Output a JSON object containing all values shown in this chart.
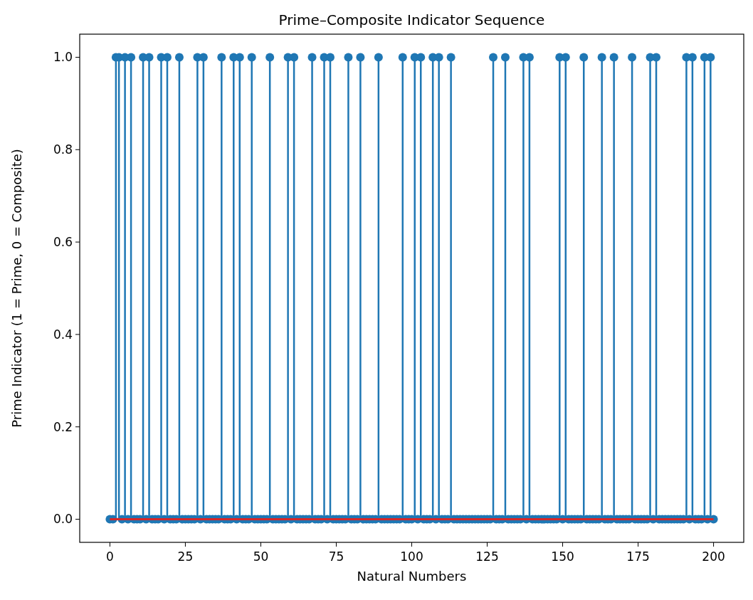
{
  "chart_data": {
    "type": "lollipop",
    "title": "Prime–Composite Indicator Sequence",
    "xlabel": "Natural Numbers",
    "ylabel": "Prime Indicator (1 = Prime, 0 = Composite)",
    "x": [
      0,
      1,
      2,
      3,
      4,
      5,
      6,
      7,
      8,
      9,
      10,
      11,
      12,
      13,
      14,
      15,
      16,
      17,
      18,
      19,
      20,
      21,
      22,
      23,
      24,
      25,
      26,
      27,
      28,
      29,
      30,
      31,
      32,
      33,
      34,
      35,
      36,
      37,
      38,
      39,
      40,
      41,
      42,
      43,
      44,
      45,
      46,
      47,
      48,
      49,
      50,
      51,
      52,
      53,
      54,
      55,
      56,
      57,
      58,
      59,
      60,
      61,
      62,
      63,
      64,
      65,
      66,
      67,
      68,
      69,
      70,
      71,
      72,
      73,
      74,
      75,
      76,
      77,
      78,
      79,
      80,
      81,
      82,
      83,
      84,
      85,
      86,
      87,
      88,
      89,
      90,
      91,
      92,
      93,
      94,
      95,
      96,
      97,
      98,
      99,
      100,
      101,
      102,
      103,
      104,
      105,
      106,
      107,
      108,
      109,
      110,
      111,
      112,
      113,
      114,
      115,
      116,
      117,
      118,
      119,
      120,
      121,
      122,
      123,
      124,
      125,
      126,
      127,
      128,
      129,
      130,
      131,
      132,
      133,
      134,
      135,
      136,
      137,
      138,
      139,
      140,
      141,
      142,
      143,
      144,
      145,
      146,
      147,
      148,
      149,
      150,
      151,
      152,
      153,
      154,
      155,
      156,
      157,
      158,
      159,
      160,
      161,
      162,
      163,
      164,
      165,
      166,
      167,
      168,
      169,
      170,
      171,
      172,
      173,
      174,
      175,
      176,
      177,
      178,
      179,
      180,
      181,
      182,
      183,
      184,
      185,
      186,
      187,
      188,
      189,
      190,
      191,
      192,
      193,
      194,
      195,
      196,
      197,
      198,
      199,
      200
    ],
    "series": [
      {
        "color": "#1f77b4",
        "values": [
          0,
          0,
          1,
          1,
          0,
          1,
          0,
          1,
          0,
          0,
          0,
          1,
          0,
          1,
          0,
          0,
          0,
          1,
          0,
          1,
          0,
          0,
          0,
          1,
          0,
          0,
          0,
          0,
          0,
          1,
          0,
          1,
          0,
          0,
          0,
          0,
          0,
          1,
          0,
          0,
          0,
          1,
          0,
          1,
          0,
          0,
          0,
          1,
          0,
          0,
          0,
          0,
          0,
          1,
          0,
          0,
          0,
          0,
          0,
          1,
          0,
          1,
          0,
          0,
          0,
          0,
          0,
          1,
          0,
          0,
          0,
          1,
          0,
          1,
          0,
          0,
          0,
          0,
          0,
          1,
          0,
          0,
          0,
          1,
          0,
          0,
          0,
          0,
          0,
          1,
          0,
          0,
          0,
          0,
          0,
          0,
          0,
          1,
          0,
          0,
          0,
          1,
          0,
          1,
          0,
          0,
          0,
          1,
          0,
          1,
          0,
          0,
          0,
          1,
          0,
          0,
          0,
          0,
          0,
          0,
          0,
          0,
          0,
          0,
          0,
          0,
          0,
          1,
          0,
          0,
          0,
          1,
          0,
          0,
          0,
          0,
          0,
          1,
          0,
          1,
          0,
          0,
          0,
          0,
          0,
          0,
          0,
          0,
          0,
          1,
          0,
          1,
          0,
          0,
          0,
          0,
          0,
          1,
          0,
          0,
          0,
          0,
          0,
          1,
          0,
          0,
          0,
          1,
          0,
          0,
          0,
          0,
          0,
          1,
          0,
          0,
          0,
          0,
          0,
          1,
          0,
          1,
          0,
          0,
          0,
          0,
          0,
          0,
          0,
          0,
          0,
          1,
          0,
          1,
          0,
          0,
          0,
          1,
          0,
          1,
          0
        ]
      }
    ],
    "xlim": [
      -10,
      210
    ],
    "xticks": [
      0,
      25,
      50,
      75,
      100,
      125,
      150,
      175,
      200
    ],
    "ylim": [
      -0.05,
      1.05
    ],
    "yticks": [
      {
        "value": 0,
        "label": "0.0"
      },
      {
        "value": 0.2,
        "label": "0.2"
      },
      {
        "value": 0.4,
        "label": "0.4"
      },
      {
        "value": 0.6,
        "label": "0.6"
      },
      {
        "value": 0.8,
        "label": "0.8"
      },
      {
        "value": 1,
        "label": "1.0"
      }
    ],
    "marker": "circle",
    "grid": false,
    "ref_lines": [
      {
        "axis": "y",
        "value": 0,
        "color": "#d62728"
      }
    ]
  }
}
